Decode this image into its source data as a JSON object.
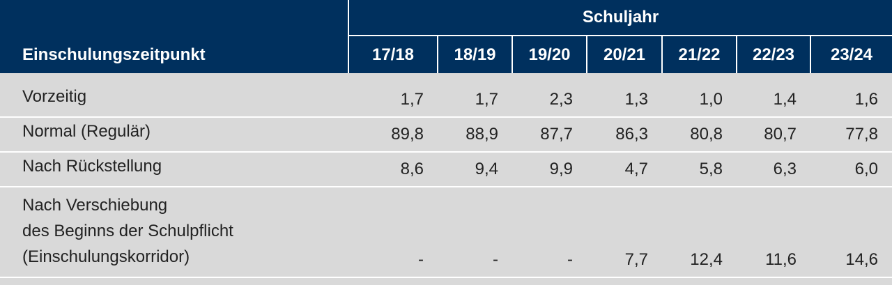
{
  "header": {
    "row_header": "Einschulungszeitpunkt",
    "group": "Schuljahr",
    "columns": [
      "17/18",
      "18/19",
      "19/20",
      "20/21",
      "21/22",
      "22/23",
      "23/24"
    ]
  },
  "table": {
    "rows": [
      {
        "label": [
          "Vorzeitig"
        ],
        "values": [
          "1,7",
          "1,7",
          "2,3",
          "1,3",
          "1,0",
          "1,4",
          "1,6"
        ]
      },
      {
        "label": [
          "Normal (Regulär)"
        ],
        "values": [
          "89,8",
          "88,9",
          "87,7",
          "86,3",
          "80,8",
          "80,7",
          "77,8"
        ]
      },
      {
        "label": [
          "Nach Rückstellung"
        ],
        "values": [
          "8,6",
          "9,4",
          "9,9",
          "4,7",
          "5,8",
          "6,3",
          "6,0"
        ]
      },
      {
        "label": [
          "Nach Verschiebung",
          "des Beginns der Schulpflicht",
          "(Einschulungskorridor)"
        ],
        "values": [
          "-",
          "-",
          "-",
          "7,7",
          "12,4",
          "11,6",
          "14,6"
        ]
      }
    ]
  }
}
